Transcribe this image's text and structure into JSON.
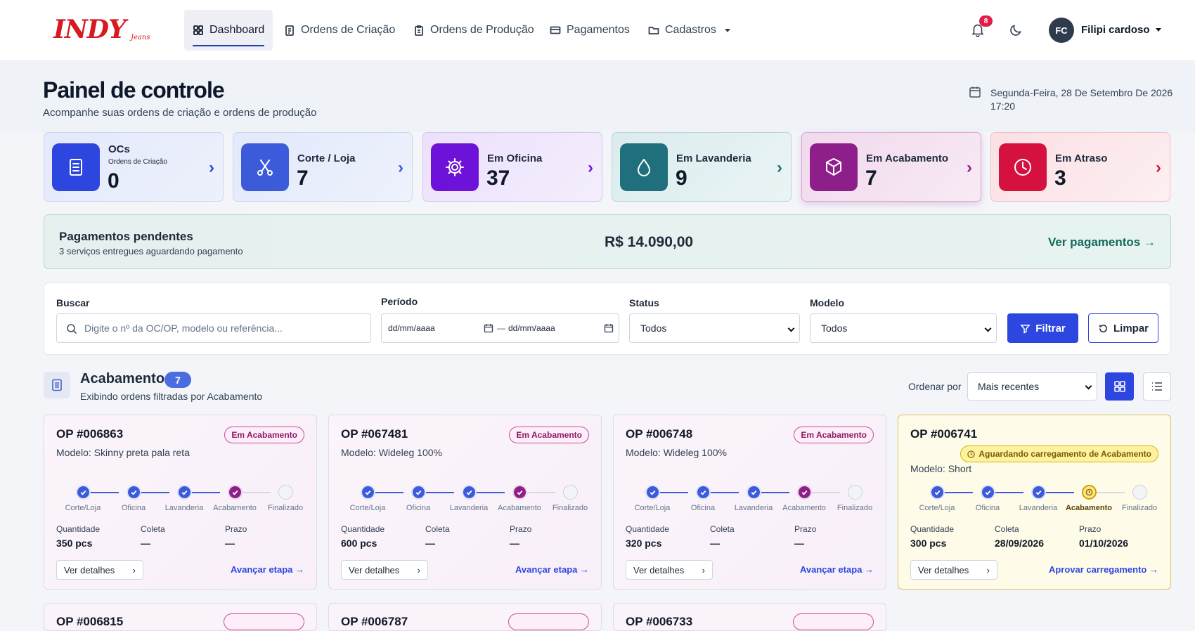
{
  "nav": {
    "logo": "INDY",
    "logo_sub": "Jeans",
    "items": [
      {
        "label": "Dashboard",
        "icon": "grid-icon",
        "active": true
      },
      {
        "label": "Ordens de Criação",
        "icon": "clipboard-icon"
      },
      {
        "label": "Ordens de Produção",
        "icon": "clipboard-list-icon"
      },
      {
        "label": "Pagamentos",
        "icon": "credit-card-icon"
      },
      {
        "label": "Cadastros",
        "icon": "folder-icon"
      }
    ],
    "notif_count": "8",
    "user_initials": "FC",
    "user_name": "Filipi cardoso"
  },
  "header": {
    "title": "Painel de controle",
    "subtitle": "Acompanhe suas ordens de criação e ordens de produção",
    "date": "Segunda-Feira, 28 De Setembro De 2026",
    "time": "17:20"
  },
  "kpis": [
    {
      "title": "OCs",
      "sub": "Ordens de Criação",
      "value": "0",
      "icon": "document-icon",
      "color": "#2d46e0"
    },
    {
      "title": "Corte / Loja",
      "value": "7",
      "icon": "scissors-icon",
      "color": "#3b5bdb"
    },
    {
      "title": "Em Oficina",
      "value": "37",
      "icon": "gear-icon",
      "color": "#6d12d8"
    },
    {
      "title": "Em Lavanderia",
      "value": "9",
      "icon": "droplet-icon",
      "color": "#1f6f7c"
    },
    {
      "title": "Em Acabamento",
      "value": "7",
      "icon": "box-icon",
      "color": "#8e1f8a"
    },
    {
      "title": "Em Atraso",
      "value": "3",
      "icon": "clock-icon",
      "color": "#d4113f"
    }
  ],
  "payments": {
    "title": "Pagamentos pendentes",
    "subtitle": "3 serviços entregues aguardando pagamento",
    "amount": "R$ 14.090,00",
    "link": "Ver pagamentos →"
  },
  "filters": {
    "search_label": "Buscar",
    "search_placeholder": "Digite o nº da OC/OP, modelo ou referência...",
    "period_label": "Período",
    "date_from": "dd/mm/aaaa",
    "date_sep": "—",
    "date_to": "dd/mm/aaaa",
    "status_label": "Status",
    "status_value": "Todos",
    "model_label": "Modelo",
    "model_value": "Todos",
    "filter_btn": "Filtrar",
    "clear_btn": "Limpar"
  },
  "section": {
    "title": "Acabamento",
    "count": "7",
    "subtitle": "Exibindo ordens filtradas por Acabamento",
    "sort_label": "Ordenar por",
    "sort_value": "Mais recentes"
  },
  "steps": [
    "Corte/Loja",
    "Oficina",
    "Lavanderia",
    "Acabamento",
    "Finalizado"
  ],
  "labels": {
    "qty": "Quantidade",
    "pickup": "Coleta",
    "due": "Prazo",
    "details": "Ver detalhes"
  },
  "cards": [
    {
      "op": "OP #006863",
      "status": "Em Acabamento",
      "model": "Modelo: Skinny preta pala reta",
      "qty": "350 pcs",
      "pickup": "—",
      "due": "—",
      "action": "Avançar etapa →"
    },
    {
      "op": "OP #067481",
      "status": "Em Acabamento",
      "model": "Modelo: Wideleg 100%",
      "qty": "600 pcs",
      "pickup": "—",
      "due": "—",
      "action": "Avançar etapa →"
    },
    {
      "op": "OP #006748",
      "status": "Em Acabamento",
      "model": "Modelo: Wideleg 100%",
      "qty": "320 pcs",
      "pickup": "—",
      "due": "—",
      "action": "Avançar etapa →"
    },
    {
      "op": "OP #006741",
      "status": "Aguardando carregamento de Acabamento",
      "model": "Modelo: Short",
      "qty": "300 pcs",
      "pickup": "28/09/2026",
      "due": "01/10/2026",
      "action": "Aprovar carregamento →"
    }
  ],
  "cards_row2": [
    {
      "op": "OP #006815"
    },
    {
      "op": "OP #006787"
    },
    {
      "op": "OP #006733"
    }
  ]
}
